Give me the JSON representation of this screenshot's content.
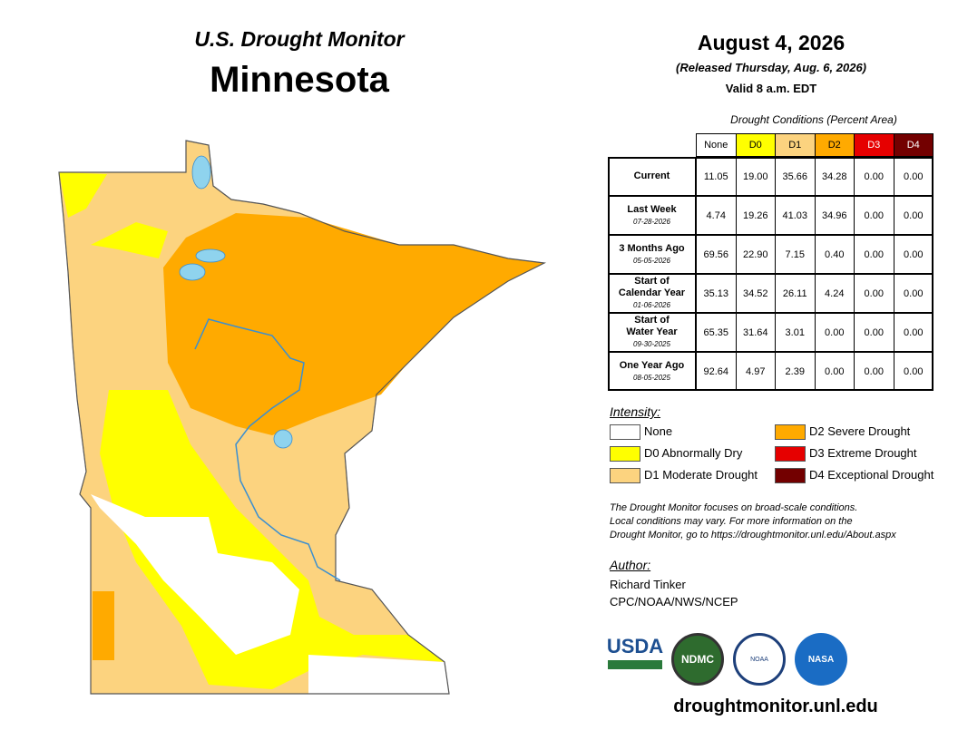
{
  "header": {
    "title": "U.S. Drought Monitor",
    "state": "Minnesota"
  },
  "date": {
    "date": "August 4, 2026",
    "released": "(Released Thursday, Aug. 6, 2026)",
    "valid": "Valid 8 a.m. EDT"
  },
  "table": {
    "caption": "Drought Conditions (Percent Area)",
    "columns": [
      "None",
      "D0",
      "D1",
      "D2",
      "D3",
      "D4"
    ],
    "rows": [
      {
        "label": [
          "Current"
        ],
        "values": [
          "11.05",
          "19.00",
          "35.66",
          "34.28",
          "0.00",
          "0.00"
        ]
      },
      {
        "label": [
          "Last Week"
        ],
        "date": "07-28-2026",
        "values": [
          "4.74",
          "19.26",
          "41.03",
          "34.96",
          "0.00",
          "0.00"
        ]
      },
      {
        "label": [
          "3 Months Ago"
        ],
        "date": "05-05-2026",
        "values": [
          "69.56",
          "22.90",
          "7.15",
          "0.40",
          "0.00",
          "0.00"
        ]
      },
      {
        "label": [
          "Start of",
          "Calendar Year"
        ],
        "date": "01-06-2026",
        "values": [
          "35.13",
          "34.52",
          "26.11",
          "4.24",
          "0.00",
          "0.00"
        ]
      },
      {
        "label": [
          "Start of",
          "Water Year"
        ],
        "date": "09-30-2025",
        "values": [
          "65.35",
          "31.64",
          "3.01",
          "0.00",
          "0.00",
          "0.00"
        ]
      },
      {
        "label": [
          "One Year Ago"
        ],
        "date": "08-05-2025",
        "values": [
          "92.64",
          "4.97",
          "2.39",
          "0.00",
          "0.00",
          "0.00"
        ]
      }
    ]
  },
  "legend": {
    "title": "Intensity:",
    "items": [
      {
        "label": "None",
        "color": "#ffffff"
      },
      {
        "label": "D0 Abnormally Dry",
        "color": "#ffff00"
      },
      {
        "label": "D1 Moderate Drought",
        "color": "#fcd37f"
      },
      {
        "label": "D2 Severe Drought",
        "color": "#ffaa00"
      },
      {
        "label": "D3 Extreme Drought",
        "color": "#e60000"
      },
      {
        "label": "D4 Exceptional Drought",
        "color": "#730000"
      }
    ]
  },
  "note": [
    "The Drought Monitor focuses on broad-scale conditions.",
    "Local conditions may vary. For more information on the",
    "Drought Monitor, go to https://droughtmonitor.unl.edu/About.aspx"
  ],
  "author": {
    "title": "Author:",
    "name": "Richard Tinker",
    "org": "CPC/NOAA/NWS/NCEP"
  },
  "logos": [
    "USDA",
    "NDMC",
    "NOAA",
    "NASA"
  ],
  "url": "droughtmonitor.unl.edu"
}
